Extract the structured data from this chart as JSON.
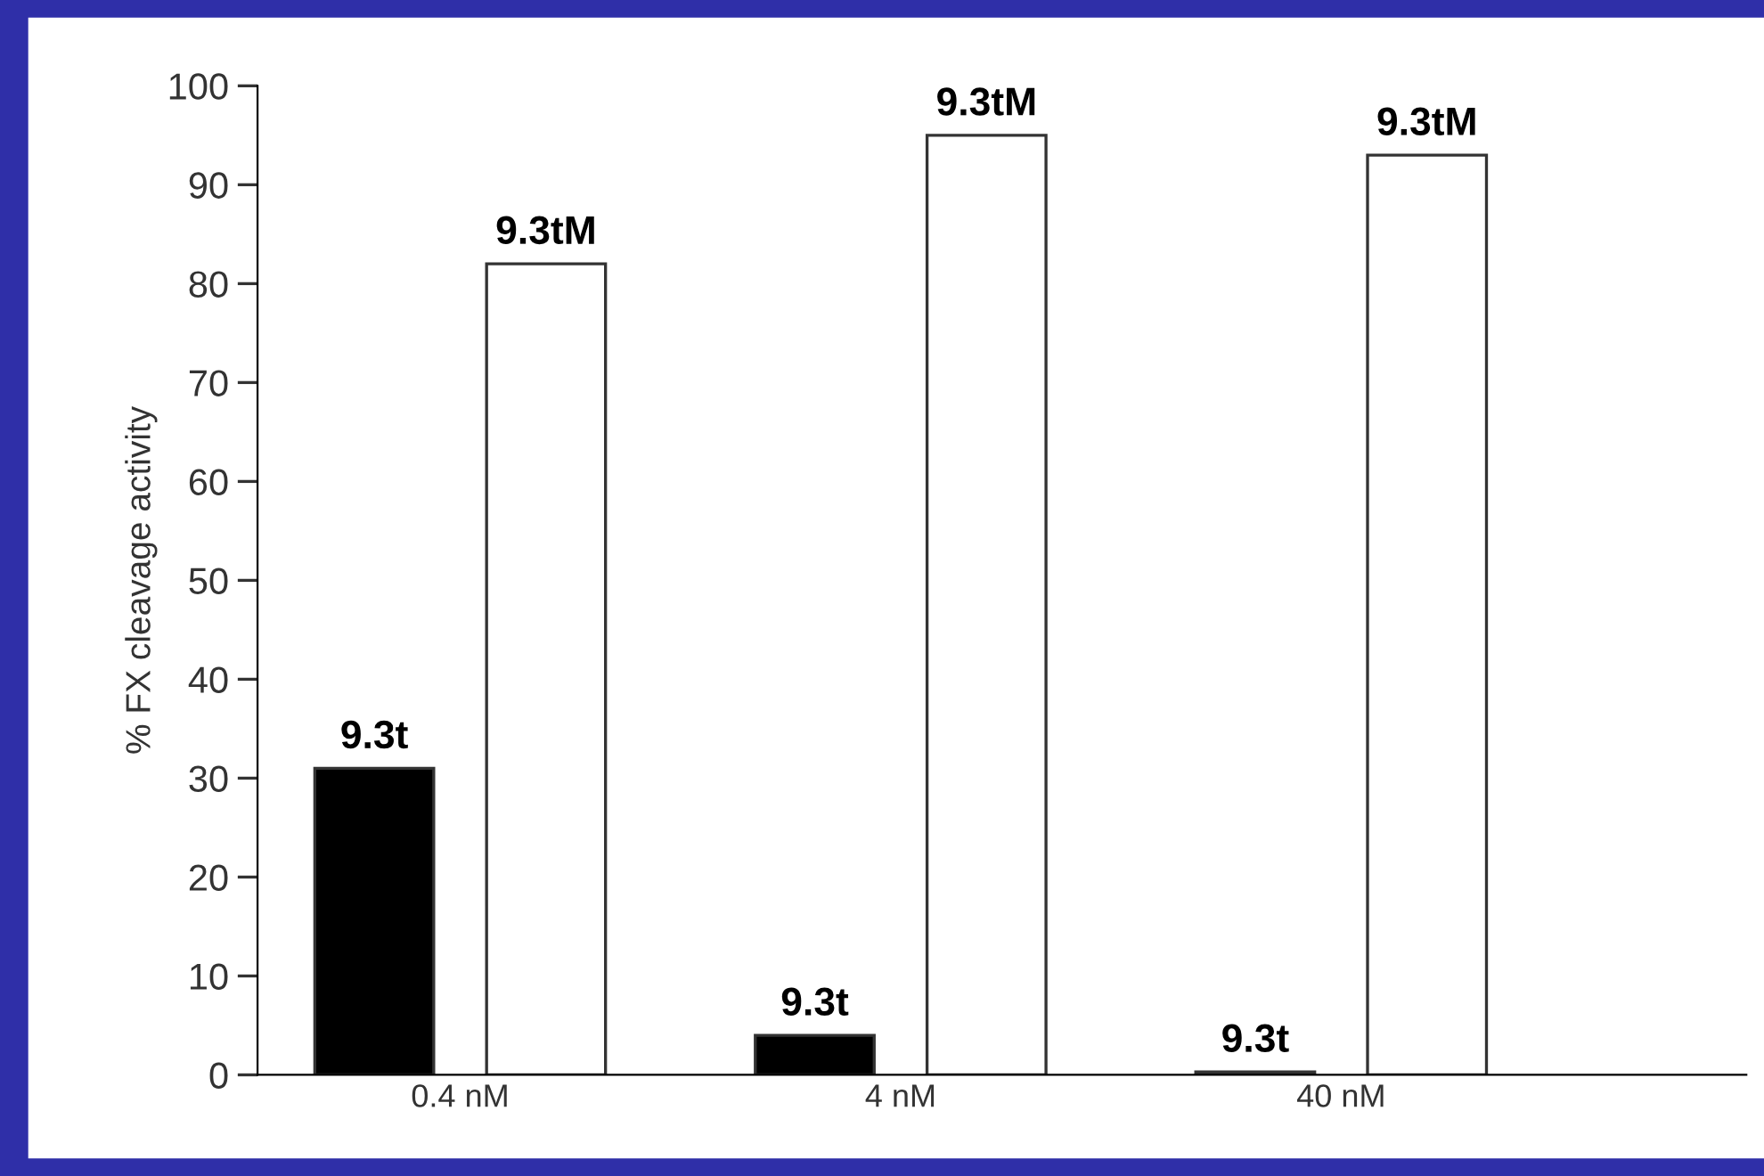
{
  "chart_data": {
    "type": "bar",
    "ylabel": "% FX cleavage activity",
    "categories": [
      "0.4 nM",
      "4 nM",
      "40 nM"
    ],
    "series": [
      {
        "name": "9.3t",
        "color": "#000000",
        "values": [
          31,
          4,
          0.3
        ]
      },
      {
        "name": "9.3tM",
        "color": "#ffffff",
        "values": [
          82,
          95,
          93
        ]
      }
    ],
    "ylim": [
      0,
      100
    ],
    "yticks": [
      0,
      10,
      20,
      30,
      40,
      50,
      60,
      70,
      80,
      90,
      100
    ],
    "grid": false,
    "legend": false
  }
}
